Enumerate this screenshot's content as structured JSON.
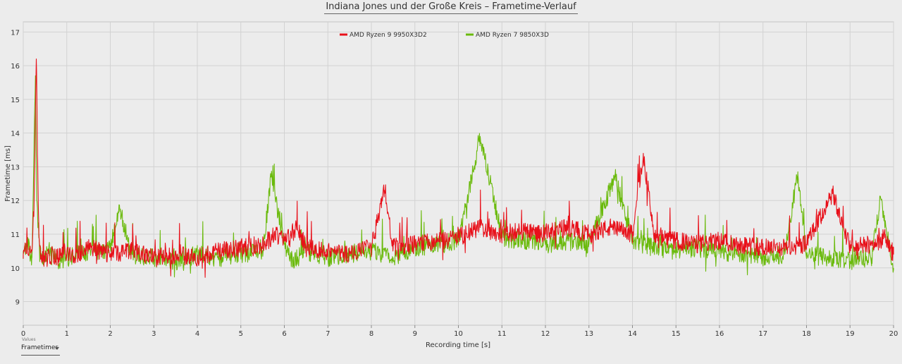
{
  "values_control": {
    "label": "Values",
    "selected": "Frametimes"
  },
  "chart_data": {
    "type": "line",
    "title": "Indiana Jones und der Große Kreis – Frametime-Verlauf",
    "xlabel": "Recording time [s]",
    "ylabel": "Frametime [ms]",
    "xlim": [
      0,
      20
    ],
    "ylim": [
      8.3,
      17.3
    ],
    "xticks": [
      "0",
      "1",
      "2",
      "3",
      "4",
      "5",
      "6",
      "7",
      "8",
      "9",
      "10",
      "11",
      "12",
      "13",
      "14",
      "15",
      "16",
      "17",
      "18",
      "19",
      "20"
    ],
    "yticks": [
      "9",
      "10",
      "11",
      "12",
      "13",
      "14",
      "15",
      "16",
      "17"
    ],
    "grid": true,
    "legend_position": "top-center",
    "series": [
      {
        "name": "AMD Ryzen 9 9950X3D2",
        "color": "#e8101a",
        "x": [
          0,
          0.1,
          0.2,
          0.25,
          0.3,
          0.33,
          0.36,
          0.4,
          0.5,
          0.6,
          0.8,
          1.0,
          1.2,
          1.5,
          1.8,
          2.0,
          2.5,
          3.0,
          3.5,
          4.0,
          4.5,
          5.0,
          5.5,
          5.8,
          6.0,
          6.3,
          6.5,
          7.0,
          7.5,
          8.0,
          8.3,
          8.5,
          9.0,
          9.5,
          10.0,
          10.5,
          11.0,
          11.5,
          12.0,
          12.5,
          13.0,
          13.5,
          14.0,
          14.25,
          14.5,
          15.0,
          15.5,
          16.0,
          16.5,
          17.0,
          17.5,
          18.0,
          18.6,
          19.0,
          19.5,
          19.8,
          20.0
        ],
        "y": [
          10.4,
          10.6,
          10.5,
          12.0,
          16.2,
          13.2,
          11.0,
          10.3,
          10.2,
          10.4,
          10.3,
          10.5,
          10.4,
          10.6,
          10.5,
          10.4,
          10.5,
          10.3,
          10.4,
          10.3,
          10.5,
          10.6,
          10.7,
          11.0,
          10.8,
          11.2,
          10.6,
          10.5,
          10.4,
          10.6,
          12.3,
          10.6,
          10.7,
          10.8,
          10.9,
          11.2,
          11.0,
          11.1,
          11.0,
          11.2,
          11.0,
          11.2,
          11.0,
          13.4,
          10.9,
          10.8,
          10.7,
          10.8,
          10.7,
          10.6,
          10.6,
          10.7,
          12.2,
          10.6,
          10.7,
          10.9,
          10.4
        ]
      },
      {
        "name": "AMD Ryzen 7 9850X3D",
        "color": "#6aba0c",
        "x": [
          0,
          0.1,
          0.2,
          0.28,
          0.31,
          0.36,
          0.4,
          0.5,
          0.6,
          0.8,
          1.0,
          1.2,
          1.5,
          1.8,
          2.0,
          2.2,
          2.5,
          3.0,
          3.5,
          4.0,
          4.5,
          5.0,
          5.5,
          5.7,
          6.0,
          6.2,
          6.5,
          7.0,
          7.5,
          8.0,
          8.5,
          9.0,
          9.5,
          10.0,
          10.5,
          11.0,
          11.5,
          12.0,
          12.5,
          13.0,
          13.6,
          14.0,
          14.5,
          15.0,
          15.5,
          16.0,
          16.5,
          17.0,
          17.5,
          17.8,
          18.0,
          18.5,
          19.0,
          19.5,
          19.7,
          20.0
        ],
        "y": [
          10.5,
          10.7,
          10.3,
          15.7,
          12.0,
          11.0,
          10.4,
          10.3,
          10.5,
          10.2,
          10.3,
          10.4,
          10.5,
          10.4,
          10.6,
          11.8,
          10.4,
          10.3,
          10.2,
          10.4,
          10.3,
          10.4,
          10.5,
          12.7,
          10.7,
          10.2,
          10.5,
          10.3,
          10.4,
          10.5,
          10.3,
          10.6,
          10.7,
          10.8,
          13.9,
          10.9,
          10.8,
          10.7,
          10.8,
          10.7,
          12.7,
          10.8,
          10.6,
          10.5,
          10.6,
          10.5,
          10.4,
          10.3,
          10.4,
          12.8,
          10.4,
          10.3,
          10.2,
          10.3,
          12.1,
          10.0
        ]
      }
    ]
  }
}
